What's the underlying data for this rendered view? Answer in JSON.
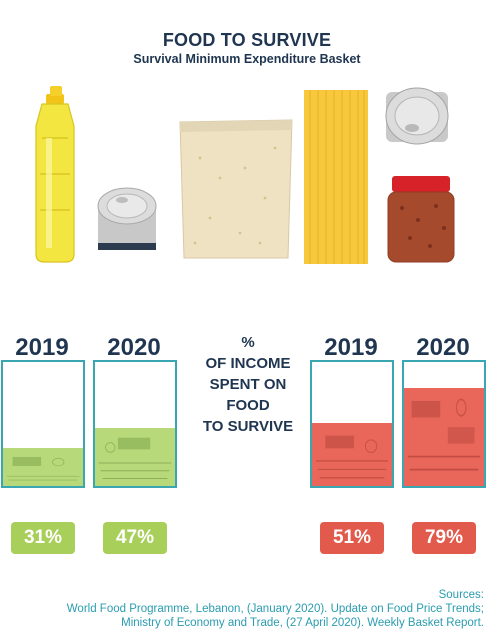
{
  "header": {
    "title": "FOOD TO SURVIVE",
    "subtitle": "Survival Minimum Expenditure Basket"
  },
  "center_label": {
    "line1": "%",
    "line2": "OF INCOME",
    "line3": "SPENT ON",
    "line4": "FOOD",
    "line5": "TO SURVIVE"
  },
  "chart_data": {
    "type": "bar",
    "groups": [
      {
        "categories": [
          "2019",
          "2020"
        ],
        "values": [
          31,
          47
        ],
        "labels": [
          "31%",
          "47%"
        ],
        "color": "#b7d97a",
        "badge_color": "#a9cf5b"
      },
      {
        "categories": [
          "2019",
          "2020"
        ],
        "values": [
          51,
          79
        ],
        "labels": [
          "51%",
          "79%"
        ],
        "color": "#e8665a",
        "badge_color": "#e25a4c"
      }
    ],
    "ylim": [
      0,
      100
    ],
    "frame_color": "#3aa6b1"
  },
  "sources": {
    "heading": "Sources:",
    "line1": "World Food Programme, Lebanon, (January 2020). Update on Food Price Trends;",
    "line2": "Ministry of Economy and Trade, (27 April 2020). Weekly Basket Report."
  }
}
